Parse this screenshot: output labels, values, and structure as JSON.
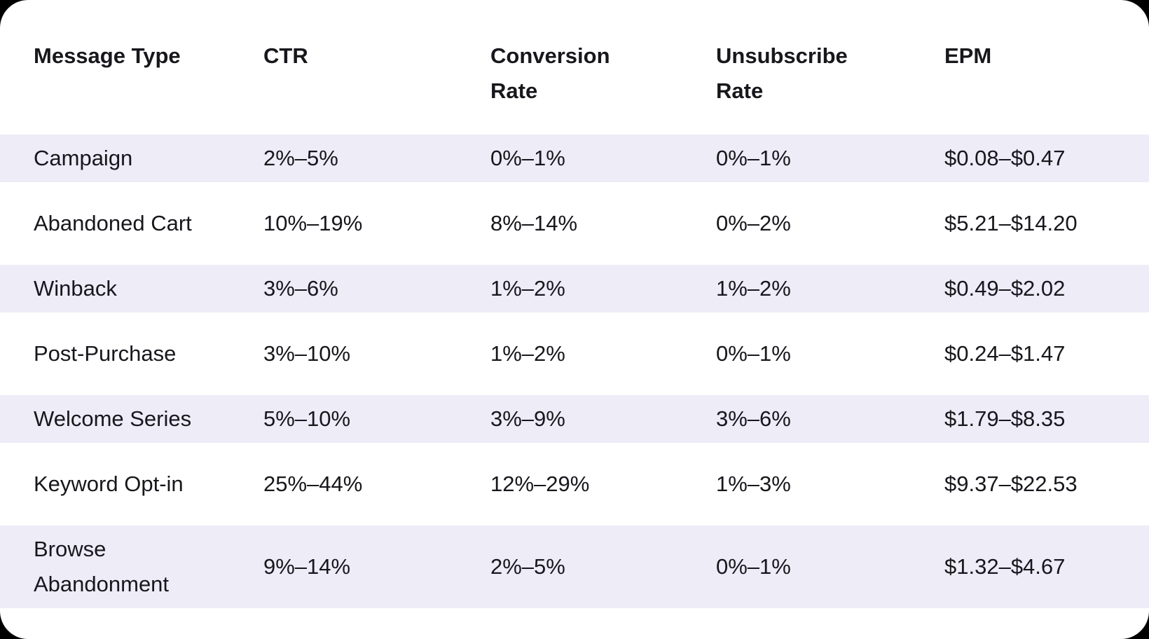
{
  "page": {
    "background_color": "#000000",
    "card_background_color": "#ffffff",
    "stripe_color": "#edecf7",
    "text_color": "#17171c"
  },
  "table": {
    "headers": [
      {
        "line1": "Message Type"
      },
      {
        "line1": "CTR"
      },
      {
        "line1": "Conversion",
        "line2": "Rate"
      },
      {
        "line1": "Unsubscribe",
        "line2": "Rate"
      },
      {
        "line1": "EPM"
      }
    ],
    "rows": [
      {
        "message_type": {
          "line1": "Campaign"
        },
        "ctr": "2%–5%",
        "conversion_rate": "0%–1%",
        "unsubscribe_rate": "0%–1%",
        "epm": "$0.08–$0.47"
      },
      {
        "message_type": {
          "line1": "Abandoned Cart"
        },
        "ctr": "10%–19%",
        "conversion_rate": "8%–14%",
        "unsubscribe_rate": "0%–2%",
        "epm": "$5.21–$14.20"
      },
      {
        "message_type": {
          "line1": "Winback"
        },
        "ctr": "3%–6%",
        "conversion_rate": "1%–2%",
        "unsubscribe_rate": "1%–2%",
        "epm": "$0.49–$2.02"
      },
      {
        "message_type": {
          "line1": "Post-Purchase"
        },
        "ctr": "3%–10%",
        "conversion_rate": "1%–2%",
        "unsubscribe_rate": "0%–1%",
        "epm": "$0.24–$1.47"
      },
      {
        "message_type": {
          "line1": "Welcome Series"
        },
        "ctr": "5%–10%",
        "conversion_rate": "3%–9%",
        "unsubscribe_rate": "3%–6%",
        "epm": "$1.79–$8.35"
      },
      {
        "message_type": {
          "line1": "Keyword Opt-in"
        },
        "ctr": "25%–44%",
        "conversion_rate": "12%–29%",
        "unsubscribe_rate": "1%–3%",
        "epm": "$9.37–$22.53"
      },
      {
        "message_type": {
          "line1": "Browse",
          "line2": "Abandonment"
        },
        "ctr": "9%–14%",
        "conversion_rate": "2%–5%",
        "unsubscribe_rate": "0%–1%",
        "epm": "$1.32–$4.67"
      }
    ]
  }
}
